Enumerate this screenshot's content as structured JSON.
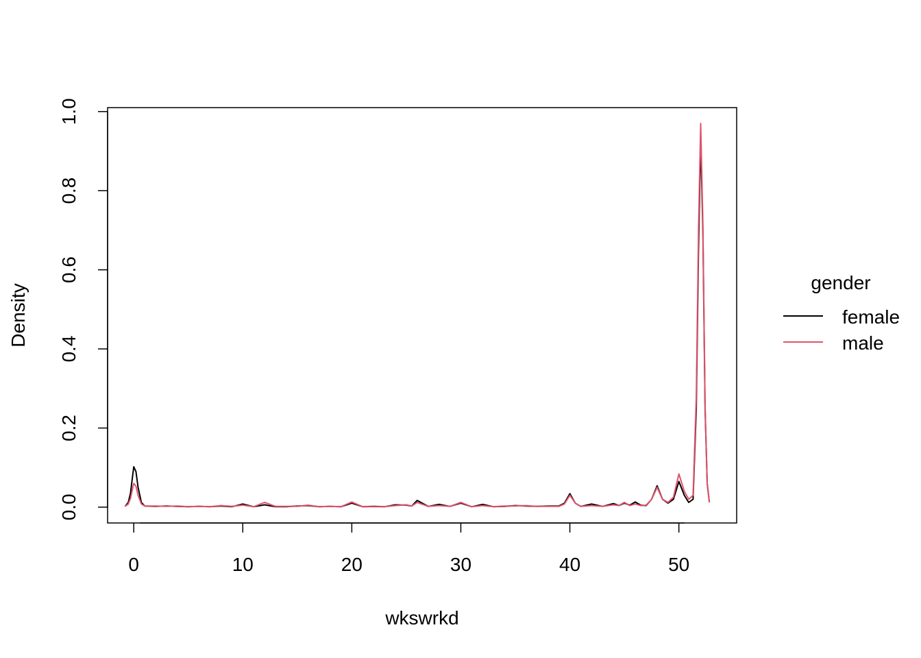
{
  "chart_data": {
    "type": "line",
    "xlabel": "wkswrkd",
    "ylabel": "Density",
    "xlim": [
      -2.4,
      55.3
    ],
    "ylim": [
      -0.04,
      1.01
    ],
    "x_ticks": [
      0,
      10,
      20,
      30,
      40,
      50
    ],
    "y_ticks": [
      0.0,
      0.2,
      0.4,
      0.6,
      0.8,
      1.0
    ],
    "x_tick_labels": [
      "0",
      "10",
      "20",
      "30",
      "40",
      "50"
    ],
    "y_tick_labels": [
      "0.0",
      "0.2",
      "0.4",
      "0.6",
      "0.8",
      "1.0"
    ],
    "legend": {
      "title": "gender",
      "placement": "right"
    },
    "series": [
      {
        "name": "female",
        "color": "#000000",
        "points": [
          [
            -0.8,
            0.002
          ],
          [
            -0.5,
            0.012
          ],
          [
            -0.3,
            0.035
          ],
          [
            -0.1,
            0.08
          ],
          [
            0.0,
            0.102
          ],
          [
            0.2,
            0.09
          ],
          [
            0.4,
            0.05
          ],
          [
            0.7,
            0.012
          ],
          [
            1.0,
            0.003
          ],
          [
            2,
            0.002
          ],
          [
            3,
            0.003
          ],
          [
            4,
            0.002
          ],
          [
            5,
            0.001
          ],
          [
            6,
            0.002
          ],
          [
            7,
            0.001
          ],
          [
            8,
            0.003
          ],
          [
            9,
            0.001
          ],
          [
            10,
            0.008
          ],
          [
            11,
            0.001
          ],
          [
            12,
            0.006
          ],
          [
            13,
            0.001
          ],
          [
            14,
            0.001
          ],
          [
            15,
            0.003
          ],
          [
            16,
            0.004
          ],
          [
            17,
            0.001
          ],
          [
            18,
            0.002
          ],
          [
            19,
            0.001
          ],
          [
            20,
            0.01
          ],
          [
            21,
            0.001
          ],
          [
            22,
            0.002
          ],
          [
            23,
            0.001
          ],
          [
            24,
            0.006
          ],
          [
            25,
            0.005
          ],
          [
            25.5,
            0.003
          ],
          [
            26,
            0.017
          ],
          [
            27,
            0.002
          ],
          [
            28,
            0.007
          ],
          [
            29,
            0.002
          ],
          [
            30,
            0.01
          ],
          [
            31,
            0.001
          ],
          [
            32,
            0.007
          ],
          [
            33,
            0.001
          ],
          [
            34,
            0.002
          ],
          [
            35,
            0.004
          ],
          [
            36,
            0.003
          ],
          [
            37,
            0.002
          ],
          [
            38,
            0.003
          ],
          [
            39,
            0.003
          ],
          [
            39.5,
            0.01
          ],
          [
            40,
            0.034
          ],
          [
            40.5,
            0.01
          ],
          [
            41,
            0.002
          ],
          [
            42,
            0.008
          ],
          [
            43,
            0.002
          ],
          [
            44,
            0.009
          ],
          [
            44.5,
            0.004
          ],
          [
            45,
            0.01
          ],
          [
            45.5,
            0.005
          ],
          [
            46,
            0.013
          ],
          [
            46.5,
            0.005
          ],
          [
            47,
            0.004
          ],
          [
            47.5,
            0.02
          ],
          [
            48,
            0.054
          ],
          [
            48.5,
            0.02
          ],
          [
            49,
            0.01
          ],
          [
            49.5,
            0.02
          ],
          [
            50,
            0.065
          ],
          [
            50.5,
            0.03
          ],
          [
            50.9,
            0.012
          ],
          [
            51.3,
            0.02
          ],
          [
            51.6,
            0.25
          ],
          [
            51.8,
            0.65
          ],
          [
            52,
            0.93
          ],
          [
            52.2,
            0.7
          ],
          [
            52.4,
            0.25
          ],
          [
            52.6,
            0.06
          ],
          [
            52.8,
            0.012
          ]
        ]
      },
      {
        "name": "male",
        "color": "#DF536B",
        "points": [
          [
            -0.8,
            0.002
          ],
          [
            -0.5,
            0.008
          ],
          [
            -0.3,
            0.022
          ],
          [
            -0.1,
            0.048
          ],
          [
            0.0,
            0.06
          ],
          [
            0.2,
            0.053
          ],
          [
            0.4,
            0.03
          ],
          [
            0.7,
            0.008
          ],
          [
            1.0,
            0.003
          ],
          [
            2,
            0.003
          ],
          [
            3,
            0.002
          ],
          [
            4,
            0.003
          ],
          [
            5,
            0.001
          ],
          [
            6,
            0.002
          ],
          [
            7,
            0.001
          ],
          [
            8,
            0.004
          ],
          [
            9,
            0.002
          ],
          [
            10,
            0.005
          ],
          [
            11,
            0.001
          ],
          [
            12,
            0.012
          ],
          [
            13,
            0.002
          ],
          [
            14,
            0.002
          ],
          [
            15,
            0.002
          ],
          [
            16,
            0.005
          ],
          [
            17,
            0.001
          ],
          [
            18,
            0.002
          ],
          [
            19,
            0.001
          ],
          [
            20,
            0.013
          ],
          [
            21,
            0.001
          ],
          [
            22,
            0.001
          ],
          [
            23,
            0.001
          ],
          [
            24,
            0.004
          ],
          [
            25,
            0.006
          ],
          [
            25.5,
            0.003
          ],
          [
            26,
            0.012
          ],
          [
            27,
            0.002
          ],
          [
            28,
            0.004
          ],
          [
            29,
            0.002
          ],
          [
            30,
            0.012
          ],
          [
            31,
            0.001
          ],
          [
            32,
            0.004
          ],
          [
            33,
            0.001
          ],
          [
            34,
            0.003
          ],
          [
            35,
            0.003
          ],
          [
            36,
            0.004
          ],
          [
            37,
            0.002
          ],
          [
            38,
            0.002
          ],
          [
            39,
            0.002
          ],
          [
            39.5,
            0.008
          ],
          [
            40,
            0.03
          ],
          [
            40.5,
            0.01
          ],
          [
            41,
            0.002
          ],
          [
            42,
            0.004
          ],
          [
            43,
            0.002
          ],
          [
            44,
            0.006
          ],
          [
            44.5,
            0.004
          ],
          [
            45,
            0.012
          ],
          [
            45.5,
            0.004
          ],
          [
            46,
            0.008
          ],
          [
            46.5,
            0.004
          ],
          [
            47,
            0.005
          ],
          [
            47.5,
            0.02
          ],
          [
            48,
            0.05
          ],
          [
            48.5,
            0.02
          ],
          [
            49,
            0.012
          ],
          [
            49.5,
            0.025
          ],
          [
            50,
            0.084
          ],
          [
            50.5,
            0.04
          ],
          [
            50.9,
            0.02
          ],
          [
            51.3,
            0.03
          ],
          [
            51.6,
            0.28
          ],
          [
            51.8,
            0.7
          ],
          [
            52,
            0.97
          ],
          [
            52.2,
            0.72
          ],
          [
            52.4,
            0.26
          ],
          [
            52.6,
            0.06
          ],
          [
            52.8,
            0.012
          ]
        ]
      }
    ]
  }
}
